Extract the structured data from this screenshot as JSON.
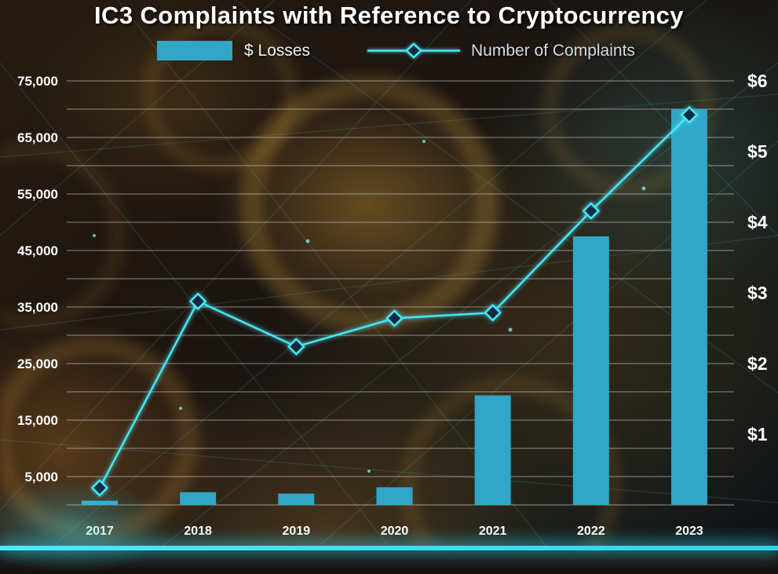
{
  "title": "IC3 Complaints with Reference to Cryptocurrency",
  "legend": {
    "losses": "$ Losses",
    "complaints": "Number of Complaints"
  },
  "chart_data": {
    "type": "combo",
    "categories": [
      "2017",
      "2018",
      "2019",
      "2020",
      "2021",
      "2022",
      "2023"
    ],
    "series": [
      {
        "name": "$ Losses",
        "type": "bar",
        "axis": "right",
        "unit": "billions USD",
        "values": [
          0.06,
          0.18,
          0.16,
          0.25,
          1.55,
          3.8,
          5.6
        ]
      },
      {
        "name": "Number of Complaints",
        "type": "line",
        "axis": "left",
        "values": [
          3000,
          36000,
          28000,
          33000,
          34000,
          52000,
          69000
        ]
      }
    ],
    "left_axis": {
      "min": 0,
      "max": 75000,
      "grid_step": 5000,
      "tick_values": [
        5000,
        15000,
        25000,
        35000,
        45000,
        55000,
        65000,
        75000
      ],
      "tick_labels": [
        "5,000",
        "15,000",
        "25,000",
        "35,000",
        "45,000",
        "55,000",
        "65,000",
        "75,000"
      ]
    },
    "right_axis": {
      "min": 0,
      "max": 6,
      "tick_values": [
        1,
        2,
        3,
        4,
        5,
        6
      ],
      "tick_labels": [
        "$1",
        "$2",
        "$3",
        "$4",
        "$5",
        "$6"
      ]
    },
    "grid": true,
    "legend_position": "top",
    "colors": {
      "bar": "#31a6c7",
      "line": "#48e6f5",
      "marker_fill": "#0a2a3f",
      "accent_strip": "#3ee1f7"
    }
  }
}
